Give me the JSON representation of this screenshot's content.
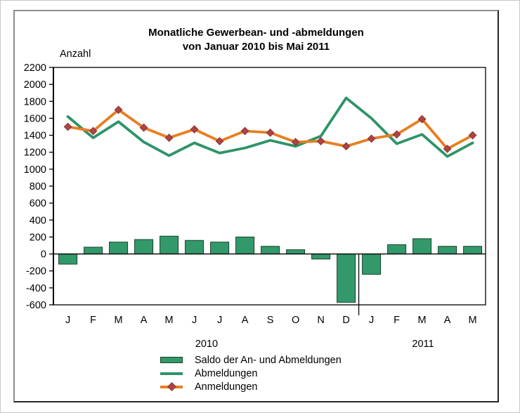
{
  "chart_data": {
    "type": "combo bar+line",
    "title": "Monatliche Gewerbean- und -abmeldungen",
    "subtitle": "von Januar 2010 bis Mai 2011",
    "y_axis_label": "Anzahl",
    "xlabel": "",
    "ylabel": "Anzahl",
    "ylim": [
      -600,
      2200
    ],
    "ytick_step": 200,
    "yticks": [
      2200,
      2000,
      1800,
      1600,
      1400,
      1200,
      1000,
      800,
      600,
      400,
      200,
      0,
      -200,
      -400,
      -600
    ],
    "categories": [
      "J",
      "F",
      "M",
      "A",
      "M",
      "J",
      "J",
      "A",
      "S",
      "O",
      "N",
      "D",
      "J",
      "F",
      "M",
      "A",
      "M"
    ],
    "year_groups": [
      {
        "label": "2010",
        "months": 12
      },
      {
        "label": "2011",
        "months": 5
      }
    ],
    "grid": false,
    "legend_position": "bottom",
    "series": [
      {
        "name": "Saldo der An- und Abmeldungen",
        "type": "bar",
        "color": "#33996b",
        "values": [
          -120,
          80,
          140,
          170,
          210,
          160,
          140,
          200,
          90,
          50,
          -60,
          -570,
          -240,
          110,
          180,
          90,
          90
        ]
      },
      {
        "name": "Abmeldungen",
        "type": "line",
        "color": "#2e9468",
        "values": [
          1620,
          1370,
          1560,
          1320,
          1160,
          1310,
          1190,
          1250,
          1340,
          1270,
          1390,
          1840,
          1600,
          1300,
          1410,
          1150,
          1310
        ]
      },
      {
        "name": "Anmeldungen",
        "type": "line-marker",
        "color": "#e87e20",
        "marker": "diamond",
        "marker_color": "#b14343",
        "values": [
          1500,
          1450,
          1700,
          1490,
          1370,
          1470,
          1330,
          1450,
          1430,
          1320,
          1330,
          1270,
          1360,
          1410,
          1590,
          1240,
          1400
        ]
      }
    ],
    "colors": {
      "bar_fill": "#33996b",
      "bar_stroke": "#14422a",
      "abmeldungen_line": "#2e9468",
      "anmeldungen_line": "#e87e20",
      "marker_fill": "#b14343",
      "marker_stroke": "#8a3232",
      "axis": "#000000"
    }
  }
}
